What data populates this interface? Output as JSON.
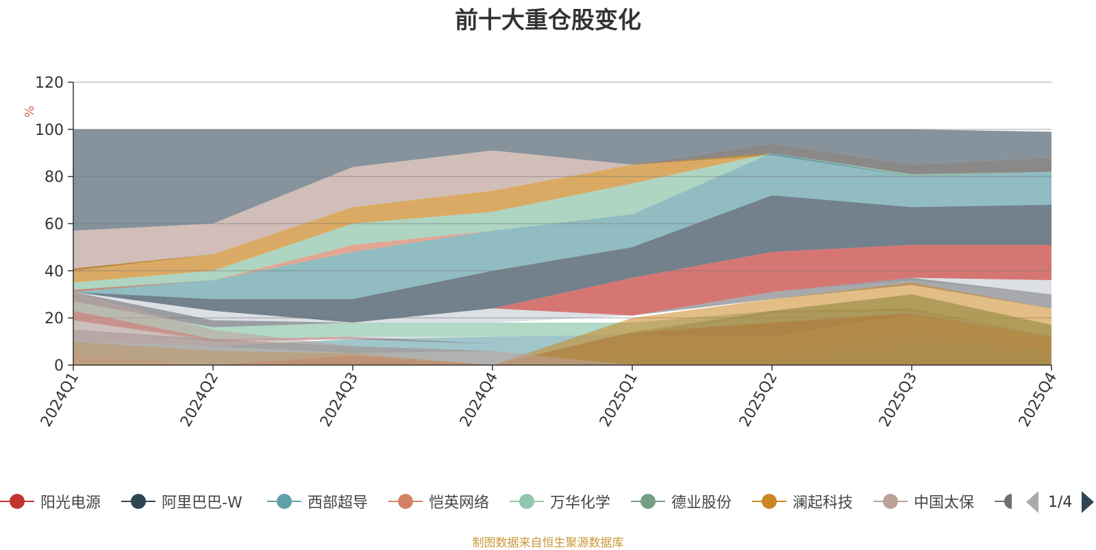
{
  "chart_data": {
    "type": "area",
    "title": "前十大重仓股变化",
    "ylabel": "%",
    "ylim": [
      0,
      120
    ],
    "yticks": [
      0,
      20,
      40,
      60,
      80,
      100,
      120
    ],
    "categories": [
      "2024Q1",
      "2024Q2",
      "2024Q3",
      "2024Q4",
      "2025Q1",
      "2025Q2",
      "2025Q3",
      "2025Q4"
    ],
    "series": [
      {
        "name": "阳光电源",
        "color": "#c23531",
        "values": [
          4,
          0,
          4,
          0,
          14,
          18,
          22,
          12
        ]
      },
      {
        "name": "阿里巴巴-W",
        "color": "#2f4554",
        "values": [
          0,
          0,
          0,
          0,
          0,
          0,
          9,
          7
        ]
      },
      {
        "name": "西部超导",
        "color": "#61a0a8",
        "values": [
          0,
          0,
          0,
          0,
          4,
          5,
          14,
          7
        ]
      },
      {
        "name": "恺英网络",
        "color": "#d48265",
        "values": [
          0,
          0,
          0,
          0,
          10,
          12,
          21,
          12
        ]
      },
      {
        "name": "万华化学",
        "color": "#91c7ae",
        "values": [
          4,
          0,
          0,
          0,
          0,
          0,
          0,
          0
        ]
      },
      {
        "name": "德业股份",
        "color": "#749f83",
        "values": [
          0,
          0,
          0,
          0,
          14,
          23,
          30,
          17
        ]
      },
      {
        "name": "澜起科技",
        "color": "#ca8622",
        "values": [
          10,
          6,
          5,
          0,
          20,
          28,
          35,
          24
        ]
      },
      {
        "name": "中国太保",
        "color": "#bda29a",
        "values": [
          31,
          15,
          8,
          6,
          0,
          0,
          0,
          0
        ]
      }
    ]
  },
  "legend": {
    "items": [
      {
        "label": "阳光电源",
        "color": "#c23531"
      },
      {
        "label": "阿里巴巴-W",
        "color": "#2f4554"
      },
      {
        "label": "西部超导",
        "color": "#61a0a8"
      },
      {
        "label": "恺英网络",
        "color": "#d48265"
      },
      {
        "label": "万华化学",
        "color": "#91c7ae"
      },
      {
        "label": "德业股份",
        "color": "#749f83"
      },
      {
        "label": "澜起科技",
        "color": "#ca8622"
      },
      {
        "label": "中国太保",
        "color": "#bda29a"
      }
    ],
    "partial_color": "#6e7074",
    "page": "1/4"
  },
  "footer": "制图数据来自恒生聚源数据库"
}
